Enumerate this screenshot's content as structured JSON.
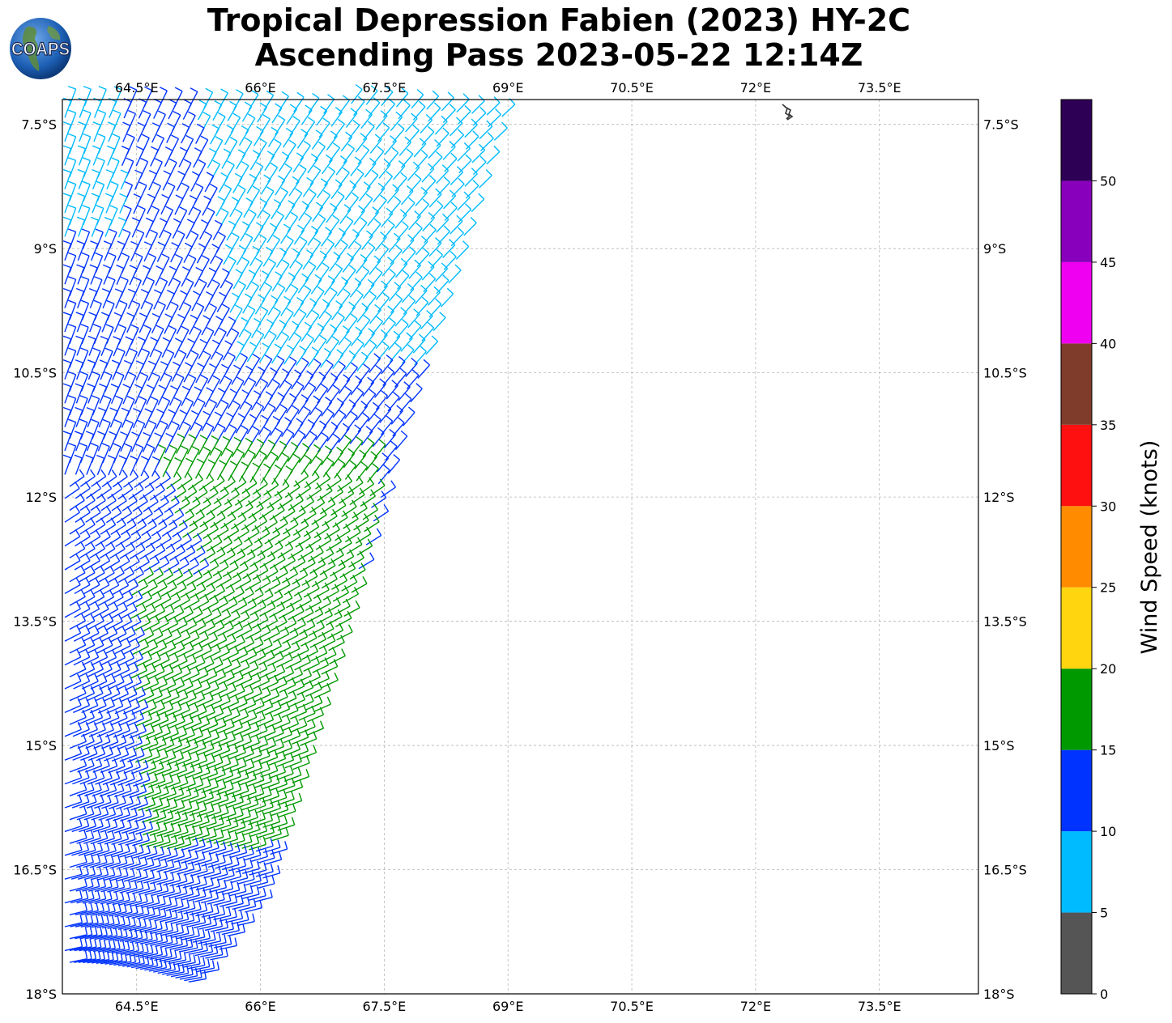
{
  "title": {
    "line1": "Tropical Depression Fabien (2023) HY-2C",
    "line2": "Ascending Pass 2023-05-22 12:14Z"
  },
  "logo": {
    "text": "COAPS",
    "icon": "globe-icon"
  },
  "chart_data": {
    "type": "wind-barb-map",
    "x_ticks": [
      "64.5°E",
      "66°E",
      "67.5°E",
      "69°E",
      "70.5°E",
      "72°E",
      "73.5°E"
    ],
    "y_ticks": [
      "7.5°S",
      "9°S",
      "10.5°S",
      "12°S",
      "13.5°S",
      "15°S",
      "16.5°S",
      "18°S"
    ],
    "lon_range": [
      63.6,
      74.7
    ],
    "lat_range": [
      -18.0,
      -7.2
    ],
    "grid": true,
    "colorbar": {
      "label": "Wind Speed (knots)",
      "ticks": [
        "0",
        "5",
        "10",
        "15",
        "20",
        "25",
        "30",
        "35",
        "40",
        "45",
        "50"
      ],
      "bins": [
        {
          "min": 0,
          "max": 5,
          "color": "#555555"
        },
        {
          "min": 5,
          "max": 10,
          "color": "#00bbff"
        },
        {
          "min": 10,
          "max": 15,
          "color": "#0033ff"
        },
        {
          "min": 15,
          "max": 20,
          "color": "#009900"
        },
        {
          "min": 20,
          "max": 25,
          "color": "#ffd510"
        },
        {
          "min": 25,
          "max": 30,
          "color": "#ff8c00"
        },
        {
          "min": 30,
          "max": 35,
          "color": "#ff1010"
        },
        {
          "min": 35,
          "max": 40,
          "color": "#803c2a"
        },
        {
          "min": 40,
          "max": 45,
          "color": "#f000f0"
        },
        {
          "min": 45,
          "max": 50,
          "color": "#8800bb"
        },
        {
          "min": 50,
          "max": 55,
          "color": "#2d0055"
        }
      ]
    }
  }
}
